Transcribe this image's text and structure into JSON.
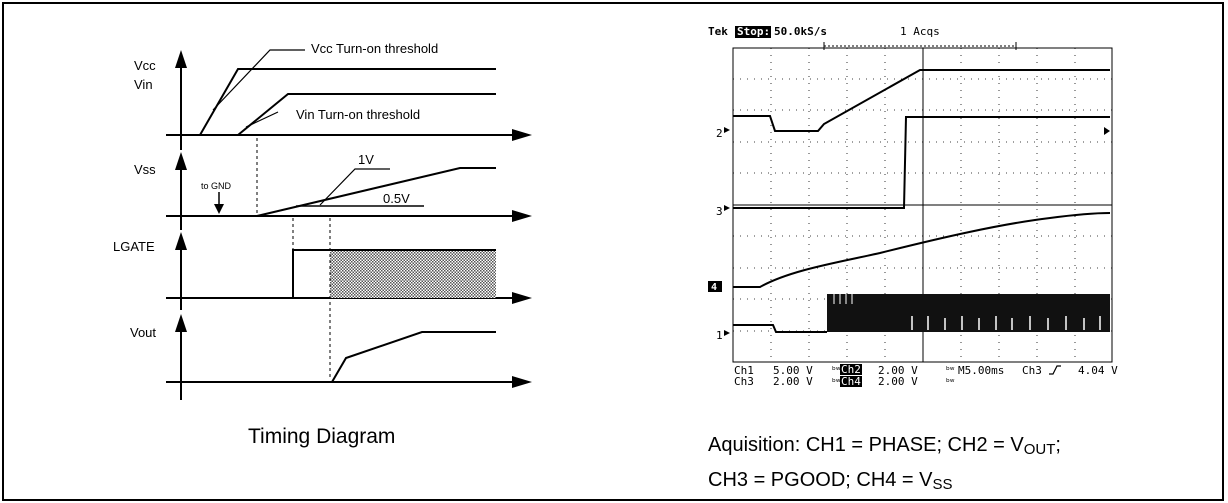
{
  "timing_diagram": {
    "caption": "Timing Diagram",
    "signals": {
      "vcc": "Vcc",
      "vin": "Vin",
      "vss": "Vss",
      "lgate": "LGATE",
      "vout": "Vout"
    },
    "annotations": {
      "vcc_threshold": "Vcc Turn-on threshold",
      "vin_threshold": "Vin Turn-on threshold",
      "to_gnd": "to GND",
      "v1": "1V",
      "v05": "0.5V"
    }
  },
  "scope": {
    "header": {
      "brand": "Tek",
      "state": "Stop:",
      "rate": "50.0kS/s",
      "acqs": "1 Acqs"
    },
    "channel_markers": {
      "ch1": "1",
      "ch2": "2",
      "ch3": "3",
      "ch4": "4"
    },
    "readout": {
      "ch1_label": "Ch1",
      "ch1_scale": "5.00 V",
      "ch2_label": "Ch2",
      "ch2_scale": "2.00 V",
      "timebase": "M5.00ms",
      "trigger": "Ch3",
      "trigger_level": "4.04 V",
      "ch3_label": "Ch3",
      "ch3_scale": "2.00 V",
      "ch4_label": "Ch4",
      "ch4_scale": "2.00 V"
    },
    "caption": {
      "line1_prefix": "Aquisition: CH1 = PHASE; CH2 = V",
      "line1_sub": "OUT",
      "line1_suffix": ";",
      "line2_prefix": "CH3 = PGOOD; CH4 = V",
      "line2_sub": "SS"
    }
  }
}
